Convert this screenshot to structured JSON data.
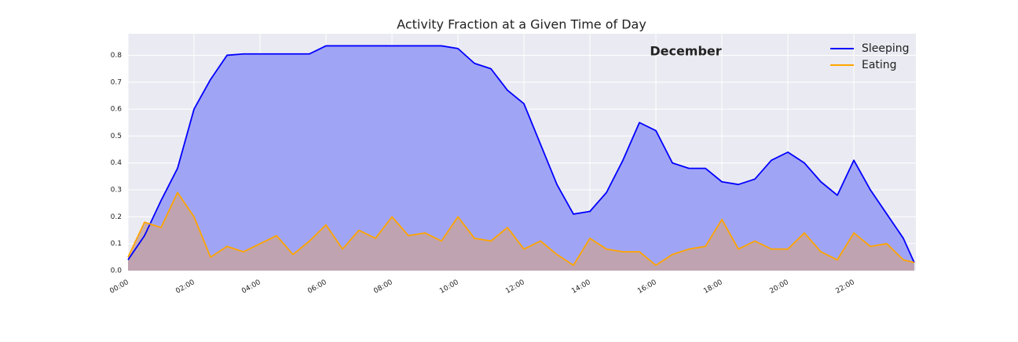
{
  "chart_data": {
    "type": "area",
    "title": "Activity Fraction at a Given Time of Day",
    "annotation": "December",
    "x": [
      0,
      0.5,
      1,
      1.5,
      2,
      2.5,
      3,
      3.5,
      4,
      4.5,
      5,
      5.5,
      6,
      6.5,
      7,
      7.5,
      8,
      8.5,
      9,
      9.5,
      10,
      10.5,
      11,
      11.5,
      12,
      12.5,
      13,
      13.5,
      14,
      14.5,
      15,
      15.5,
      16,
      16.5,
      17,
      17.5,
      18,
      18.5,
      19,
      19.5,
      20,
      20.5,
      21,
      21.5,
      22,
      22.5,
      23,
      23.5,
      23.83
    ],
    "series": [
      {
        "name": "Sleeping",
        "color": "#0000ff",
        "fill": "#a0a4f5",
        "values": [
          0.04,
          0.13,
          0.26,
          0.38,
          0.6,
          0.71,
          0.8,
          0.805,
          0.805,
          0.805,
          0.805,
          0.805,
          0.835,
          0.835,
          0.835,
          0.835,
          0.835,
          0.835,
          0.835,
          0.835,
          0.825,
          0.77,
          0.75,
          0.67,
          0.62,
          0.47,
          0.32,
          0.21,
          0.22,
          0.29,
          0.41,
          0.55,
          0.52,
          0.4,
          0.38,
          0.38,
          0.33,
          0.32,
          0.34,
          0.41,
          0.44,
          0.4,
          0.33,
          0.28,
          0.41,
          0.3,
          0.21,
          0.12,
          0.03
        ]
      },
      {
        "name": "Eating",
        "color": "#ffa500",
        "fill": "#c4a3a3",
        "values": [
          0.05,
          0.18,
          0.16,
          0.29,
          0.2,
          0.05,
          0.09,
          0.07,
          0.1,
          0.13,
          0.06,
          0.11,
          0.17,
          0.08,
          0.15,
          0.12,
          0.2,
          0.13,
          0.14,
          0.11,
          0.2,
          0.12,
          0.11,
          0.16,
          0.08,
          0.11,
          0.06,
          0.02,
          0.12,
          0.08,
          0.07,
          0.07,
          0.02,
          0.06,
          0.08,
          0.09,
          0.19,
          0.08,
          0.11,
          0.08,
          0.08,
          0.14,
          0.07,
          0.04,
          0.14,
          0.09,
          0.1,
          0.04,
          0.03
        ]
      }
    ],
    "xlim": [
      0,
      23.88
    ],
    "xticks": [
      {
        "value": 0,
        "label": "00:00"
      },
      {
        "value": 2,
        "label": "02:00"
      },
      {
        "value": 4,
        "label": "04:00"
      },
      {
        "value": 6,
        "label": "06:00"
      },
      {
        "value": 8,
        "label": "08:00"
      },
      {
        "value": 10,
        "label": "10:00"
      },
      {
        "value": 12,
        "label": "12:00"
      },
      {
        "value": 14,
        "label": "14:00"
      },
      {
        "value": 16,
        "label": "16:00"
      },
      {
        "value": 18,
        "label": "18:00"
      },
      {
        "value": 20,
        "label": "20:00"
      },
      {
        "value": 22,
        "label": "22:00"
      }
    ],
    "ylim": [
      0,
      0.88
    ],
    "yticks": [
      {
        "value": 0,
        "label": "0.0"
      },
      0.1,
      0.2,
      0.3,
      0.4,
      0.5,
      0.6,
      0.7,
      0.8
    ],
    "grid": true,
    "legend": "upper right"
  }
}
